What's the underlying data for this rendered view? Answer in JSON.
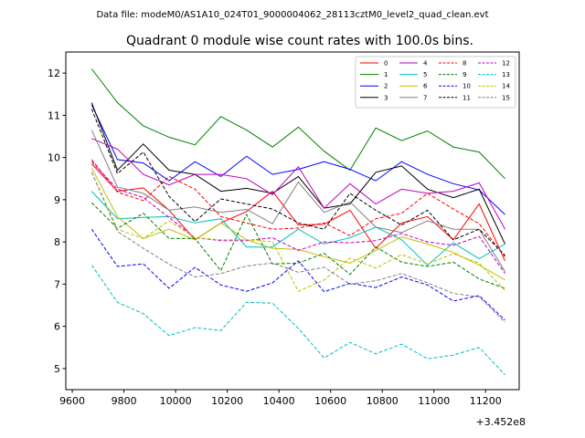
{
  "header": {
    "data_file": "Data file: modeM0/AS1A10_024T01_9000004062_28113cztM0_level2_quad_clean.evt"
  },
  "chart_data": {
    "type": "line",
    "title": "Quadrant 0 module wise count rates with 100.0s bins.",
    "xlabel": "",
    "ylabel": "",
    "x_offset_label": "+3.452e8",
    "x_offset": 345200000,
    "x": [
      9675,
      9775,
      9875,
      9975,
      10075,
      10175,
      10275,
      10375,
      10475,
      10575,
      10675,
      10775,
      10875,
      10975,
      11075,
      11175,
      11275
    ],
    "xlim": [
      9575,
      11330
    ],
    "ylim": [
      4.5,
      12.5
    ],
    "xticks": [
      9600,
      9800,
      10000,
      10200,
      10400,
      10600,
      10800,
      11000,
      11200
    ],
    "xtick_labels": [
      "9600",
      "9800",
      "10000",
      "10200",
      "10400",
      "10600",
      "10800",
      "11000",
      "11200"
    ],
    "yticks": [
      5,
      6,
      7,
      8,
      9,
      10,
      11,
      12
    ],
    "ytick_labels": [
      "5",
      "6",
      "7",
      "8",
      "9",
      "10",
      "11",
      "12"
    ],
    "legend_position": "top-right",
    "series": [
      {
        "name": "0",
        "color": "#ff0000",
        "dash": "solid",
        "values": [
          9.85,
          9.2,
          9.28,
          8.75,
          8.05,
          8.45,
          8.72,
          9.2,
          8.4,
          8.42,
          8.75,
          7.85,
          8.45,
          8.6,
          8.05,
          8.9,
          7.55
        ]
      },
      {
        "name": "1",
        "color": "#008000",
        "dash": "solid",
        "values": [
          12.1,
          11.3,
          10.75,
          10.48,
          10.3,
          10.97,
          10.65,
          10.25,
          10.72,
          10.15,
          9.7,
          10.7,
          10.4,
          10.63,
          10.25,
          10.13,
          9.5
        ]
      },
      {
        "name": "2",
        "color": "#0000ff",
        "dash": "solid",
        "values": [
          11.25,
          9.95,
          9.87,
          9.45,
          9.9,
          9.55,
          10.03,
          9.6,
          9.72,
          9.9,
          9.72,
          9.45,
          9.9,
          9.6,
          9.38,
          9.23,
          8.65
        ]
      },
      {
        "name": "3",
        "color": "#000000",
        "dash": "solid",
        "values": [
          11.3,
          9.7,
          10.32,
          9.7,
          9.6,
          9.2,
          9.27,
          9.15,
          9.55,
          8.8,
          8.9,
          9.65,
          9.8,
          9.25,
          9.05,
          9.25,
          7.95
        ]
      },
      {
        "name": "4",
        "color": "#c000c0",
        "dash": "solid",
        "values": [
          10.45,
          10.2,
          9.6,
          9.35,
          9.6,
          9.6,
          9.5,
          9.12,
          9.78,
          8.8,
          9.38,
          8.9,
          9.25,
          9.15,
          9.2,
          9.4,
          8.3
        ]
      },
      {
        "name": "5",
        "color": "#00bfbf",
        "dash": "solid",
        "values": [
          9.2,
          8.55,
          8.58,
          8.6,
          8.45,
          8.55,
          7.88,
          7.88,
          8.3,
          7.95,
          8.1,
          8.35,
          8.05,
          7.45,
          7.98,
          7.6,
          7.95
        ]
      },
      {
        "name": "6",
        "color": "#bfbf00",
        "dash": "solid",
        "values": [
          9.75,
          8.6,
          8.08,
          8.3,
          8.05,
          8.45,
          8.05,
          7.85,
          7.82,
          7.65,
          7.5,
          7.8,
          8.12,
          7.95,
          7.75,
          7.45,
          7.1
        ]
      },
      {
        "name": "7",
        "color": "#808080",
        "dash": "solid",
        "values": [
          10.65,
          9.3,
          9.15,
          8.75,
          8.83,
          8.7,
          8.77,
          8.43,
          9.42,
          8.7,
          8.95,
          8.35,
          8.22,
          8.5,
          8.3,
          8.3,
          7.3
        ]
      },
      {
        "name": "8",
        "color": "#ff0000",
        "dash": "dashed",
        "values": [
          9.95,
          9.18,
          8.98,
          9.55,
          9.25,
          8.6,
          8.45,
          8.3,
          8.33,
          8.45,
          8.15,
          8.55,
          8.68,
          9.15,
          8.78,
          8.43,
          7.65
        ]
      },
      {
        "name": "9",
        "color": "#008000",
        "dash": "dashed",
        "values": [
          8.93,
          8.32,
          8.68,
          8.08,
          8.08,
          7.32,
          8.65,
          7.48,
          7.5,
          7.73,
          7.23,
          7.88,
          7.52,
          7.42,
          7.52,
          7.12,
          6.9
        ]
      },
      {
        "name": "10",
        "color": "#0000ff",
        "dash": "dashed",
        "values": [
          8.3,
          7.42,
          7.48,
          6.9,
          7.4,
          6.98,
          6.83,
          7.03,
          7.55,
          6.82,
          7.02,
          6.92,
          7.17,
          6.98,
          6.6,
          6.73,
          6.15
        ]
      },
      {
        "name": "11",
        "color": "#000000",
        "dash": "dashed",
        "values": [
          11.15,
          9.62,
          10.13,
          9.08,
          8.48,
          9.02,
          8.9,
          8.78,
          8.45,
          8.3,
          9.15,
          8.75,
          8.4,
          8.75,
          8.05,
          8.3,
          7.68
        ]
      },
      {
        "name": "12",
        "color": "#c000c0",
        "dash": "dashed",
        "values": [
          9.9,
          9.25,
          9.05,
          8.58,
          8.1,
          8.03,
          8.03,
          8.1,
          7.8,
          8.0,
          7.98,
          8.03,
          8.2,
          8.0,
          7.92,
          8.13,
          7.25
        ]
      },
      {
        "name": "13",
        "color": "#00bfbf",
        "dash": "dashed",
        "values": [
          7.45,
          6.57,
          6.3,
          5.78,
          5.97,
          5.9,
          6.57,
          6.55,
          5.95,
          5.25,
          5.62,
          5.35,
          5.58,
          5.23,
          5.32,
          5.5,
          4.85
        ]
      },
      {
        "name": "14",
        "color": "#bfbf00",
        "dash": "dashed",
        "values": [
          9.65,
          8.3,
          8.08,
          8.5,
          8.1,
          8.05,
          8.05,
          8.0,
          6.83,
          7.1,
          7.62,
          7.38,
          7.7,
          7.48,
          7.72,
          7.5,
          6.85
        ]
      },
      {
        "name": "15",
        "color": "#808080",
        "dash": "dashed",
        "values": [
          9.65,
          8.25,
          7.85,
          7.47,
          7.17,
          7.25,
          7.43,
          7.5,
          7.28,
          7.4,
          7.0,
          7.08,
          7.25,
          7.03,
          6.78,
          6.7,
          6.1
        ]
      }
    ]
  }
}
